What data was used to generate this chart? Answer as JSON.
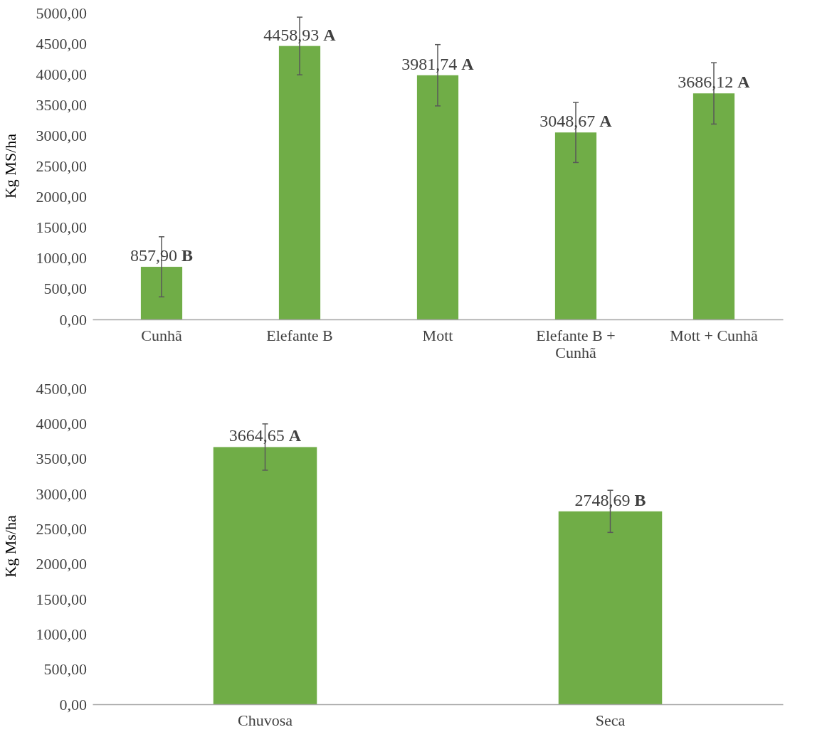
{
  "chart_data": [
    {
      "type": "bar",
      "ylabel": "Kg MS/ha",
      "categories": [
        "Cunhã",
        "Elefante B",
        "Mott",
        "Elefante B + Cunhã",
        "Mott + Cunhã"
      ],
      "values": [
        857.9,
        4458.93,
        3981.74,
        3048.67,
        3686.12
      ],
      "color": "#70ad47",
      "errors": [
        490,
        470,
        500,
        490,
        500
      ],
      "value_labels": [
        "857,90 B",
        "4458,93 A",
        "3981,74 A",
        "3048,67 A",
        "3686,12 A"
      ],
      "ylim": [
        0,
        5000
      ],
      "yticks": [
        {
          "value": 0,
          "label": "0,00"
        },
        {
          "value": 500,
          "label": "500,00"
        },
        {
          "value": 1000,
          "label": "1000,00"
        },
        {
          "value": 1500,
          "label": "1500,00"
        },
        {
          "value": 2000,
          "label": "2000,00"
        },
        {
          "value": 2500,
          "label": "2500,00"
        },
        {
          "value": 3000,
          "label": "3000,00"
        },
        {
          "value": 3500,
          "label": "3500,00"
        },
        {
          "value": 4000,
          "label": "4000,00"
        },
        {
          "value": 4500,
          "label": "4500,00"
        },
        {
          "value": 5000,
          "label": "5000,00"
        }
      ],
      "grid": false
    },
    {
      "type": "bar",
      "ylabel": "Kg Ms/ha",
      "categories": [
        "Chuvosa",
        "Seca"
      ],
      "values": [
        3664.65,
        2748.69
      ],
      "color": "#70ad47",
      "errors": [
        330,
        300
      ],
      "value_labels": [
        "3664,65 A",
        "2748,69 B"
      ],
      "ylim": [
        0,
        4500
      ],
      "yticks": [
        {
          "value": 0,
          "label": "0,00"
        },
        {
          "value": 500,
          "label": "500,00"
        },
        {
          "value": 1000,
          "label": "1000,00"
        },
        {
          "value": 1500,
          "label": "1500,00"
        },
        {
          "value": 2000,
          "label": "2000,00"
        },
        {
          "value": 2500,
          "label": "2500,00"
        },
        {
          "value": 3000,
          "label": "3000,00"
        },
        {
          "value": 3500,
          "label": "3500,00"
        },
        {
          "value": 4000,
          "label": "4000,00"
        },
        {
          "value": 4500,
          "label": "4500,00"
        }
      ],
      "grid": false
    }
  ]
}
